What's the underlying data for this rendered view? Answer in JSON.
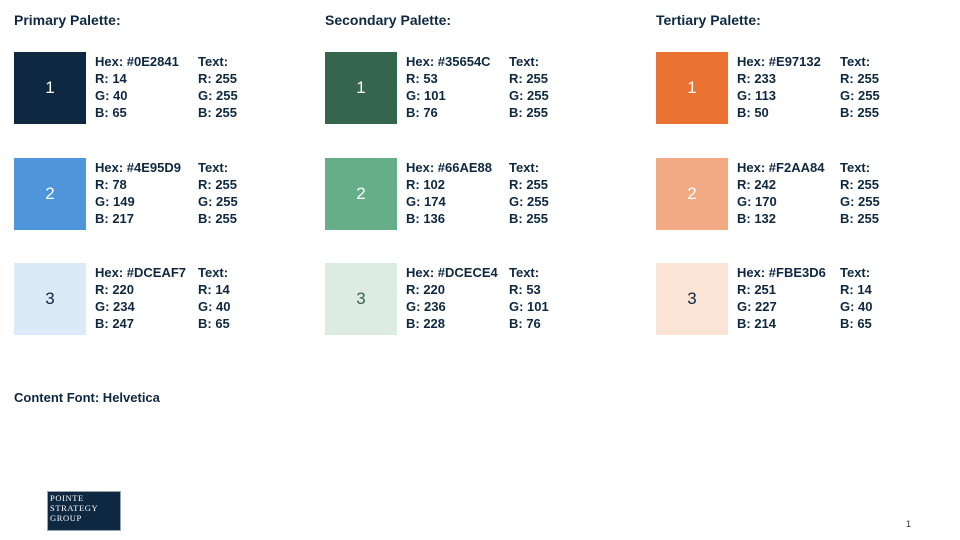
{
  "palettes": [
    {
      "title": "Primary Palette:",
      "swatches": [
        {
          "number": "1",
          "color": "#0E2841",
          "text_color": "#FFFFFF",
          "hex": "Hex: #0E2841",
          "r": "R: 14",
          "g": "G: 40",
          "b": "B: 65",
          "text_label": "Text:",
          "text_r": "R: 255",
          "text_g": "G: 255",
          "text_b": "B: 255"
        },
        {
          "number": "2",
          "color": "#4E95D9",
          "text_color": "#FFFFFF",
          "hex": "Hex: #4E95D9",
          "r": "R: 78",
          "g": "G: 149",
          "b": "B: 217",
          "text_label": "Text:",
          "text_r": "R: 255",
          "text_g": "G: 255",
          "text_b": "B: 255"
        },
        {
          "number": "3",
          "color": "#DCEAF7",
          "text_color": "#0E2841",
          "hex": "Hex: #DCEAF7",
          "r": "R: 220",
          "g": "G: 234",
          "b": "B: 247",
          "text_label": "Text:",
          "text_r": "R: 14",
          "text_g": "G: 40",
          "text_b": "B: 65"
        }
      ]
    },
    {
      "title": "Secondary Palette:",
      "swatches": [
        {
          "number": "1",
          "color": "#35654C",
          "text_color": "#FFFFFF",
          "hex": "Hex: #35654C",
          "r": "R: 53",
          "g": "G: 101",
          "b": "B: 76",
          "text_label": "Text:",
          "text_r": "R: 255",
          "text_g": "G: 255",
          "text_b": "B: 255"
        },
        {
          "number": "2",
          "color": "#66AE88",
          "text_color": "#FFFFFF",
          "hex": "Hex: #66AE88",
          "r": "R: 102",
          "g": "G: 174",
          "b": "B: 136",
          "text_label": "Text:",
          "text_r": "R: 255",
          "text_g": "G: 255",
          "text_b": "B: 255"
        },
        {
          "number": "3",
          "color": "#DCECE4",
          "text_color": "#35654C",
          "hex": "Hex: #DCECE4",
          "r": "R: 220",
          "g": "G: 236",
          "b": "B: 228",
          "text_label": "Text:",
          "text_r": "R: 53",
          "text_g": "G: 101",
          "text_b": "B: 76"
        }
      ]
    },
    {
      "title": "Tertiary Palette:",
      "swatches": [
        {
          "number": "1",
          "color": "#E97132",
          "text_color": "#FFFFFF",
          "hex": "Hex: #E97132",
          "r": "R: 233",
          "g": "G: 113",
          "b": "B: 50",
          "text_label": "Text:",
          "text_r": "R: 255",
          "text_g": "G: 255",
          "text_b": "B: 255"
        },
        {
          "number": "2",
          "color": "#F2AA84",
          "text_color": "#FFFFFF",
          "hex": "Hex: #F2AA84",
          "r": "R: 242",
          "g": "G: 170",
          "b": "B: 132",
          "text_label": "Text:",
          "text_r": "R: 255",
          "text_g": "G: 255",
          "text_b": "B: 255"
        },
        {
          "number": "3",
          "color": "#FBE3D6",
          "text_color": "#0E2841",
          "hex": "Hex: #FBE3D6",
          "r": "R: 251",
          "g": "G: 227",
          "b": "B: 214",
          "text_label": "Text:",
          "text_r": "R: 14",
          "text_g": "G: 40",
          "text_b": "B: 65"
        }
      ]
    }
  ],
  "content_font": "Content Font: Helvetica",
  "logo": {
    "line1": "POINTE",
    "line2": "STRATEGY",
    "line3": "GROUP"
  },
  "page_number": "1"
}
